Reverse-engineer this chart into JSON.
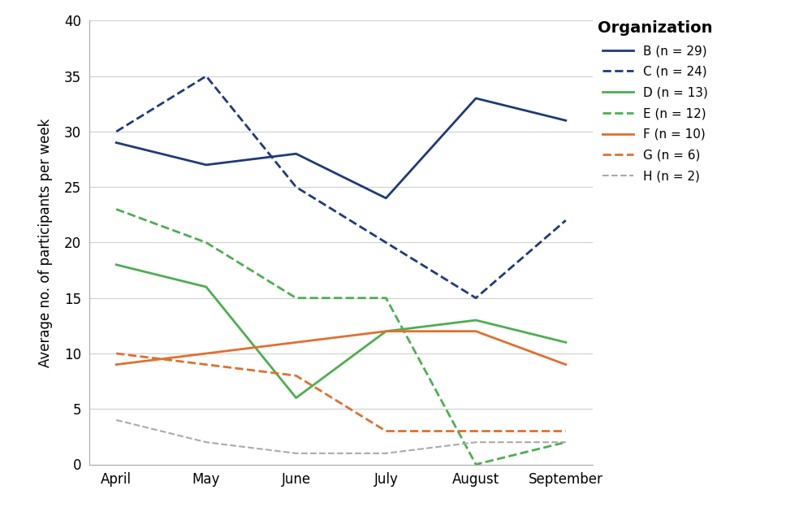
{
  "months": [
    "April",
    "May",
    "June",
    "July",
    "August",
    "September"
  ],
  "series": [
    {
      "label": "B (n = 29)",
      "color": "#1f3a7a",
      "linestyle": "solid",
      "linewidth": 2.0,
      "values": [
        29,
        27,
        28,
        24,
        33,
        31
      ]
    },
    {
      "label": "C (n = 24)",
      "color": "#1f3a7a",
      "linestyle": "dashed",
      "linewidth": 2.0,
      "values": [
        30,
        35,
        25,
        20,
        15,
        22
      ]
    },
    {
      "label": "D (n = 13)",
      "color": "#4caf50",
      "linestyle": "solid",
      "linewidth": 2.0,
      "values": [
        18,
        16,
        6,
        12,
        13,
        11
      ]
    },
    {
      "label": "E (n = 12)",
      "color": "#4caf50",
      "linestyle": "dashed",
      "linewidth": 2.0,
      "values": [
        23,
        20,
        15,
        15,
        0,
        2
      ]
    },
    {
      "label": "F (n = 10)",
      "color": "#e07030",
      "linestyle": "solid",
      "linewidth": 2.0,
      "values": [
        9,
        10,
        11,
        12,
        12,
        9
      ]
    },
    {
      "label": "G (n = 6)",
      "color": "#e07030",
      "linestyle": "dashed",
      "linewidth": 2.0,
      "values": [
        10,
        9,
        8,
        3,
        3,
        3
      ]
    },
    {
      "label": "H (n = 2)",
      "color": "#aaaaaa",
      "linestyle": "dashed",
      "linewidth": 1.5,
      "values": [
        4,
        2,
        1,
        1,
        2,
        2
      ]
    }
  ],
  "title": "",
  "ylabel": "Average no. of participants per week",
  "xlabel": "",
  "ylim": [
    0,
    40
  ],
  "yticks": [
    0,
    5,
    10,
    15,
    20,
    25,
    30,
    35,
    40
  ],
  "legend_title": "Organization",
  "background_color": "#ffffff",
  "grid_color": "#d0d0d0",
  "spine_color": "#aaaaaa"
}
